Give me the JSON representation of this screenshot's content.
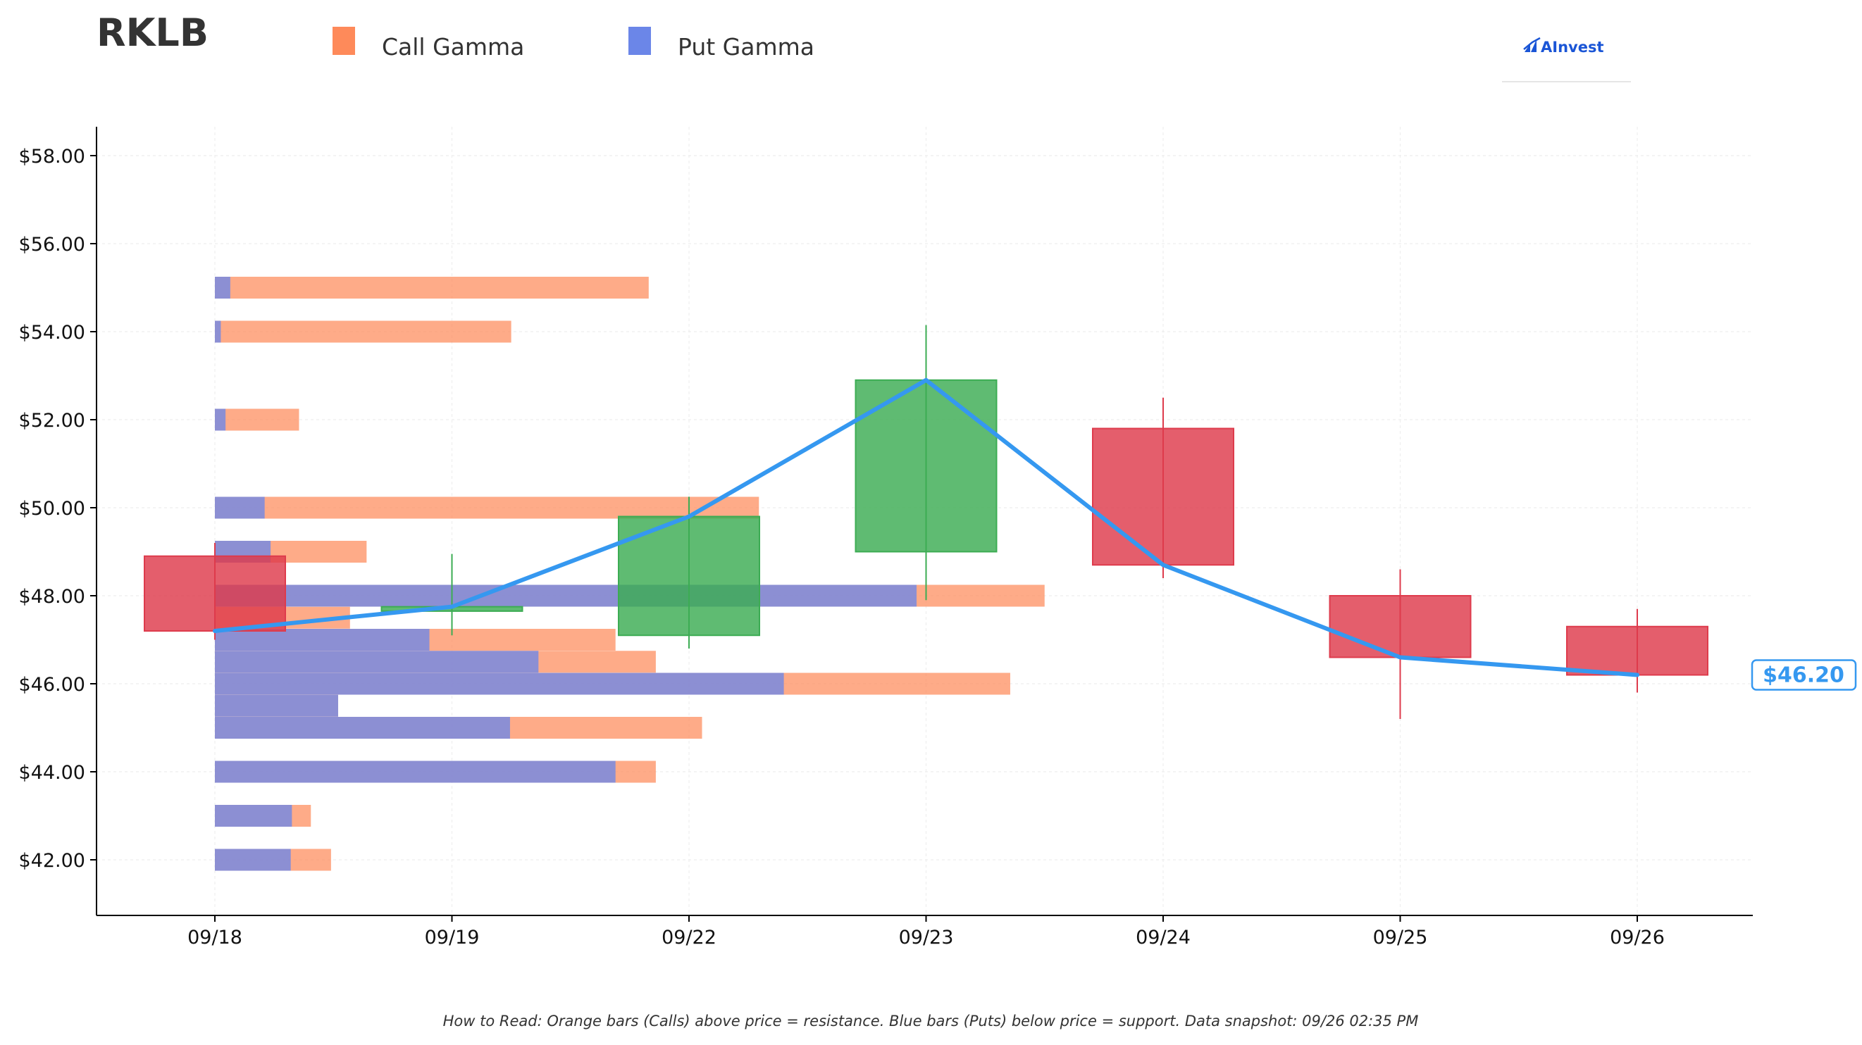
{
  "header": {
    "ticker": "RKLB",
    "logo_text": "AInvest"
  },
  "legend": {
    "call_label": "Call Gamma",
    "put_label": "Put Gamma"
  },
  "footer": {
    "note": "How to Read: Orange bars (Calls) above price = resistance. Blue bars (Puts) below price = support. Data snapshot: 09/26 02:35 PM"
  },
  "colors": {
    "call": "#fe8a5a",
    "put": "#6b86e8",
    "up": "#3cac53",
    "down": "#de3b4c",
    "line": "#3598f0",
    "axis": "#000000",
    "grid": "#eeeeee",
    "logo": "#1a55d6"
  },
  "chart_data": {
    "type": "candlestick",
    "title": "RKLB",
    "categories": [
      "09/18",
      "09/19",
      "09/22",
      "09/23",
      "09/24",
      "09/25",
      "09/26"
    ],
    "ylim": [
      40.8,
      58.7
    ],
    "yticks": [
      42,
      44,
      46,
      48,
      50,
      52,
      54,
      56,
      58
    ],
    "ytick_labels": [
      "$42.00",
      "$44.00",
      "$46.00",
      "$48.00",
      "$50.00",
      "$52.00",
      "$54.00",
      "$56.00",
      "$58.00"
    ],
    "grid": true,
    "legend_position": "top",
    "candles": [
      {
        "date": "09/18",
        "open": 48.9,
        "high": 49.2,
        "low": 47.0,
        "close": 47.2
      },
      {
        "date": "09/19",
        "open": 47.65,
        "high": 48.95,
        "low": 47.1,
        "close": 47.75
      },
      {
        "date": "09/22",
        "open": 47.1,
        "high": 50.25,
        "low": 46.8,
        "close": 49.8
      },
      {
        "date": "09/23",
        "open": 49.0,
        "high": 54.15,
        "low": 47.9,
        "close": 52.9
      },
      {
        "date": "09/24",
        "open": 51.8,
        "high": 52.5,
        "low": 48.4,
        "close": 48.7
      },
      {
        "date": "09/25",
        "open": 48.0,
        "high": 48.6,
        "low": 45.2,
        "close": 46.6
      },
      {
        "date": "09/26",
        "open": 47.3,
        "high": 47.7,
        "low": 45.8,
        "close": 46.2
      }
    ],
    "close_line": [
      47.2,
      47.75,
      49.8,
      52.9,
      48.7,
      46.6,
      46.2
    ],
    "last_price_label": "$46.20",
    "gamma_bars": [
      {
        "strike": 55,
        "put": 0.065,
        "call": 1.83
      },
      {
        "strike": 54,
        "put": 0.025,
        "call": 1.25
      },
      {
        "strike": 52,
        "put": 0.045,
        "call": 0.355
      },
      {
        "strike": 50,
        "put": 0.21,
        "call": 2.295
      },
      {
        "strike": 49,
        "put": 0.235,
        "call": 0.64
      },
      {
        "strike": 48,
        "put": 2.96,
        "call": 3.5
      },
      {
        "strike": 47.5,
        "put": 0.0,
        "call": 0.57
      },
      {
        "strike": 47,
        "put": 0.905,
        "call": 1.69
      },
      {
        "strike": 46.5,
        "put": 1.365,
        "call": 1.86
      },
      {
        "strike": 46,
        "put": 2.4,
        "call": 3.355
      },
      {
        "strike": 45.5,
        "put": 0.52,
        "call": 0.52
      },
      {
        "strike": 45,
        "put": 1.245,
        "call": 2.055
      },
      {
        "strike": 44,
        "put": 1.69,
        "call": 1.86
      },
      {
        "strike": 43,
        "put": 0.325,
        "call": 0.405
      },
      {
        "strike": 42,
        "put": 0.32,
        "call": 0.49
      }
    ]
  }
}
